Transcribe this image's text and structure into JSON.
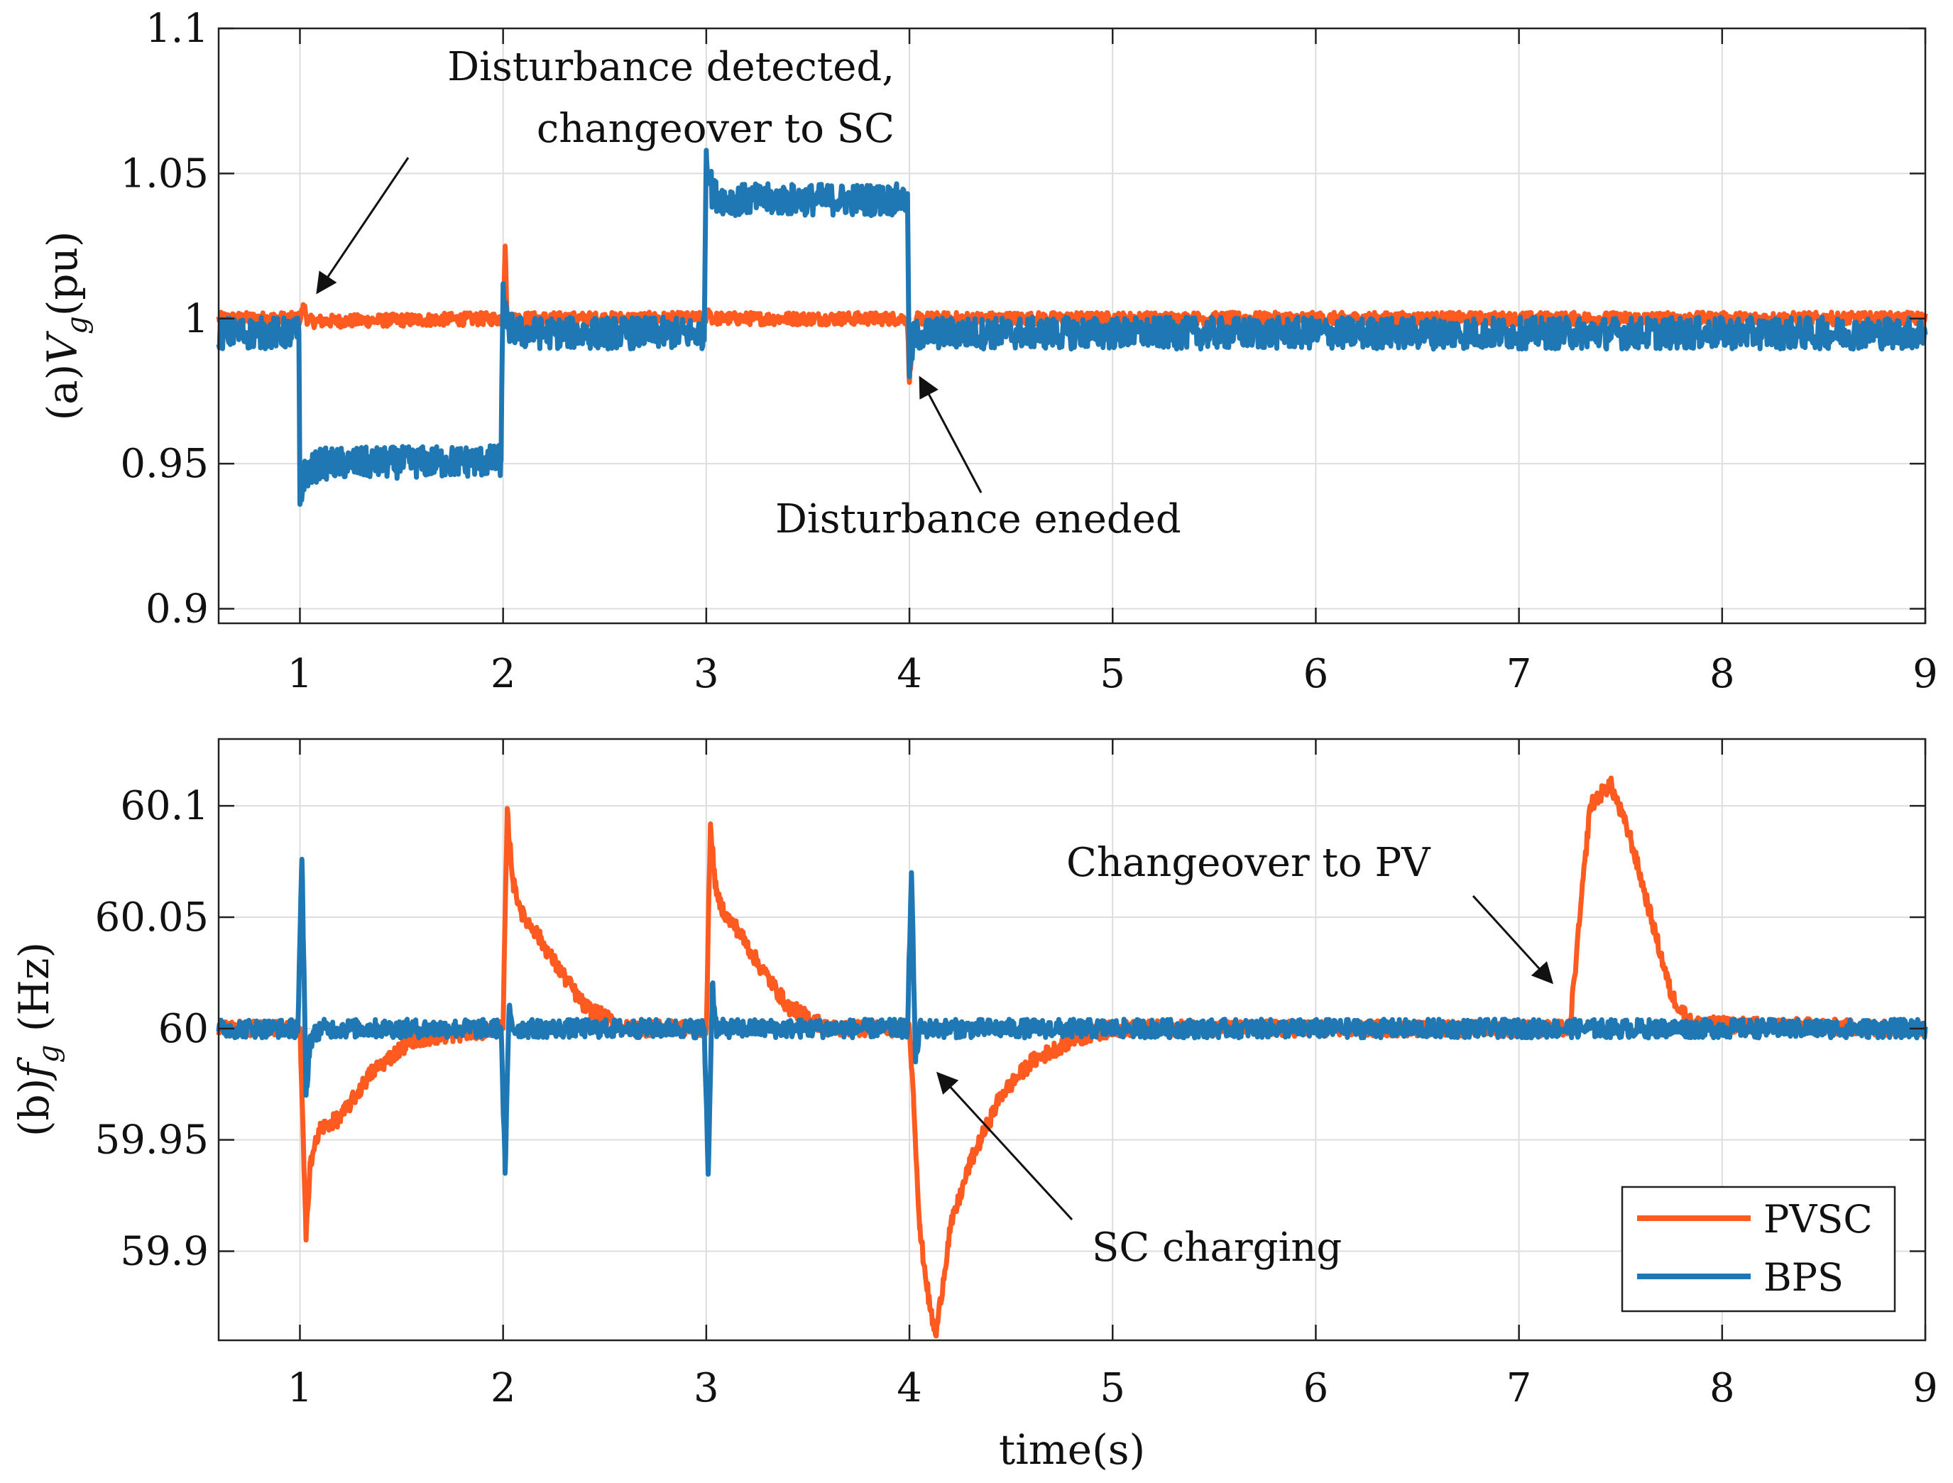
{
  "colors": {
    "pvsc": "#FF5A1F",
    "bps": "#1F77B4",
    "grid": "#DDDDDD",
    "axis": "#222222"
  },
  "legend": {
    "position": "bottom-right",
    "pvsc_label": "PVSC",
    "bps_label": "BPS"
  },
  "annotations": {
    "disturbance_detected_line1": "Disturbance detected,",
    "disturbance_detected_line2": "changeover to SC",
    "disturbance_ended": "Disturbance eneded",
    "changeover_pv": "Changeover to PV",
    "sc_charging": "SC charging"
  },
  "chart_data": [
    {
      "type": "line",
      "title": "",
      "ylabel_prefix": "(a)",
      "ylabel_var": "V",
      "ylabel_sub": "g",
      "ylabel_unit": "(pu)",
      "xlabel": "",
      "xlim": [
        0.6,
        9
      ],
      "ylim": [
        0.895,
        1.1
      ],
      "xticks": [
        1,
        2,
        3,
        4,
        5,
        6,
        7,
        8,
        9
      ],
      "yticks": [
        0.9,
        0.95,
        1,
        1.05,
        1.1
      ],
      "ytick_labels": [
        "0.9",
        "0.95",
        "1",
        "1.05",
        "1.1"
      ],
      "grid": true,
      "series": [
        {
          "name": "PVSC",
          "noise": 0.0022,
          "points": [
            [
              0.6,
              1.0
            ],
            [
              1.0,
              1.0
            ],
            [
              1.02,
              1.004
            ],
            [
              1.04,
              0.999
            ],
            [
              2.0,
              1.0
            ],
            [
              2.01,
              1.025
            ],
            [
              2.02,
              1.0
            ],
            [
              3.0,
              1.0
            ],
            [
              3.01,
              1.003
            ],
            [
              3.03,
              1.0
            ],
            [
              3.99,
              1.0
            ],
            [
              4.0,
              0.978
            ],
            [
              4.01,
              0.99
            ],
            [
              4.04,
              1.0
            ],
            [
              9.0,
              1.0
            ]
          ]
        },
        {
          "name": "BPS",
          "noise": 0.0055,
          "points": [
            [
              0.6,
              0.995
            ],
            [
              0.995,
              0.995
            ],
            [
              1.0,
              0.936
            ],
            [
              1.02,
              0.946
            ],
            [
              1.1,
              0.95
            ],
            [
              1.99,
              0.951
            ],
            [
              2.0,
              1.012
            ],
            [
              2.02,
              0.997
            ],
            [
              2.1,
              0.995
            ],
            [
              2.99,
              0.995
            ],
            [
              3.0,
              1.058
            ],
            [
              3.03,
              1.043
            ],
            [
              3.1,
              1.041
            ],
            [
              3.99,
              1.041
            ],
            [
              4.0,
              0.98
            ],
            [
              4.02,
              0.994
            ],
            [
              4.1,
              0.995
            ],
            [
              9.0,
              0.995
            ]
          ]
        }
      ]
    },
    {
      "type": "line",
      "title": "",
      "ylabel_prefix": "(b)",
      "ylabel_var": "f",
      "ylabel_sub": "g",
      "ylabel_unit": " (Hz)",
      "xlabel": "time(s)",
      "xlim": [
        0.6,
        9
      ],
      "ylim": [
        59.86,
        60.13
      ],
      "xticks": [
        1,
        2,
        3,
        4,
        5,
        6,
        7,
        8,
        9
      ],
      "yticks": [
        59.9,
        59.95,
        60,
        60.05,
        60.1
      ],
      "ytick_labels": [
        "59.9",
        "59.95",
        "60",
        "60.05",
        "60.1"
      ],
      "grid": true,
      "series": [
        {
          "name": "PVSC",
          "noise": 0.0035,
          "points": [
            [
              0.6,
              60.0
            ],
            [
              1.0,
              60.0
            ],
            [
              1.01,
              59.97
            ],
            [
              1.03,
              59.905
            ],
            [
              1.05,
              59.94
            ],
            [
              1.1,
              59.955
            ],
            [
              1.2,
              59.96
            ],
            [
              1.35,
              59.98
            ],
            [
              1.55,
              59.995
            ],
            [
              2.0,
              60.0
            ],
            [
              2.02,
              60.097
            ],
            [
              2.05,
              60.065
            ],
            [
              2.1,
              60.05
            ],
            [
              2.15,
              60.045
            ],
            [
              2.25,
              60.03
            ],
            [
              2.4,
              60.01
            ],
            [
              2.6,
              60.0
            ],
            [
              3.0,
              60.0
            ],
            [
              3.02,
              60.09
            ],
            [
              3.05,
              60.06
            ],
            [
              3.1,
              60.05
            ],
            [
              3.15,
              60.045
            ],
            [
              3.25,
              60.03
            ],
            [
              3.4,
              60.01
            ],
            [
              3.6,
              60.0
            ],
            [
              4.0,
              60.0
            ],
            [
              4.02,
              59.97
            ],
            [
              4.05,
              59.91
            ],
            [
              4.1,
              59.875
            ],
            [
              4.13,
              59.862
            ],
            [
              4.2,
              59.91
            ],
            [
              4.3,
              59.94
            ],
            [
              4.45,
              59.97
            ],
            [
              4.6,
              59.985
            ],
            [
              4.8,
              59.995
            ],
            [
              5.0,
              60.0
            ],
            [
              7.25,
              60.0
            ],
            [
              7.3,
              60.05
            ],
            [
              7.35,
              60.1
            ],
            [
              7.45,
              60.11
            ],
            [
              7.55,
              60.085
            ],
            [
              7.65,
              60.05
            ],
            [
              7.75,
              60.015
            ],
            [
              7.85,
              60.002
            ],
            [
              9.0,
              60.0
            ]
          ]
        },
        {
          "name": "BPS",
          "noise": 0.0042,
          "points": [
            [
              0.6,
              60.0
            ],
            [
              0.99,
              60.0
            ],
            [
              1.01,
              60.076
            ],
            [
              1.03,
              59.97
            ],
            [
              1.05,
              59.995
            ],
            [
              1.1,
              60.0
            ],
            [
              1.99,
              60.0
            ],
            [
              2.01,
              59.935
            ],
            [
              2.03,
              60.01
            ],
            [
              2.05,
              60.0
            ],
            [
              2.99,
              60.0
            ],
            [
              3.01,
              59.935
            ],
            [
              3.03,
              60.02
            ],
            [
              3.05,
              60.0
            ],
            [
              3.99,
              60.0
            ],
            [
              4.01,
              60.07
            ],
            [
              4.03,
              59.985
            ],
            [
              4.05,
              60.0
            ],
            [
              9.0,
              60.0
            ]
          ]
        }
      ]
    }
  ]
}
